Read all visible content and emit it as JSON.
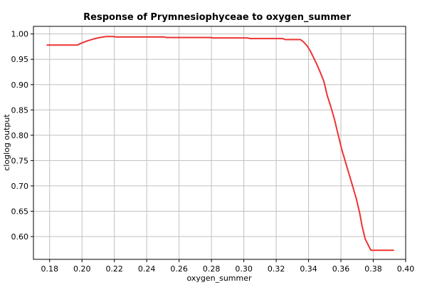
{
  "chart_data": {
    "type": "line",
    "title": "Response of Prymnesiophyceae to oxygen_summer",
    "xlabel": "oxygen_summer",
    "ylabel": "cloglog output",
    "xlim": [
      0.17,
      0.4
    ],
    "ylim": [
      0.555,
      1.015
    ],
    "grid": true,
    "x_ticks": [
      "0.18",
      "0.20",
      "0.22",
      "0.24",
      "0.26",
      "0.28",
      "0.30",
      "0.32",
      "0.34",
      "0.36",
      "0.38",
      "0.40"
    ],
    "y_ticks": [
      "1.00",
      "0.95",
      "0.90",
      "0.85",
      "0.80",
      "0.75",
      "0.70",
      "0.65",
      "0.60"
    ],
    "line_color": "#ee3333",
    "series": [
      {
        "x": [
          0.1785,
          0.197,
          0.199,
          0.203,
          0.207,
          0.211,
          0.215,
          0.2195,
          0.221,
          0.25,
          0.2525,
          0.2795,
          0.281,
          0.3025,
          0.304,
          0.324,
          0.3255,
          0.335,
          0.337,
          0.339,
          0.341,
          0.343,
          0.345,
          0.347,
          0.3495,
          0.3515,
          0.3535,
          0.356,
          0.358,
          0.3605,
          0.362,
          0.3645,
          0.367,
          0.3695,
          0.3715,
          0.373,
          0.375,
          0.3785,
          0.3925
        ],
        "y": [
          0.978,
          0.978,
          0.981,
          0.986,
          0.99,
          0.993,
          0.995,
          0.995,
          0.994,
          0.994,
          0.993,
          0.993,
          0.992,
          0.992,
          0.991,
          0.991,
          0.989,
          0.989,
          0.984,
          0.977,
          0.967,
          0.954,
          0.941,
          0.926,
          0.906,
          0.879,
          0.859,
          0.832,
          0.805,
          0.772,
          0.756,
          0.729,
          0.702,
          0.675,
          0.648,
          0.622,
          0.595,
          0.573,
          0.573
        ]
      }
    ]
  }
}
